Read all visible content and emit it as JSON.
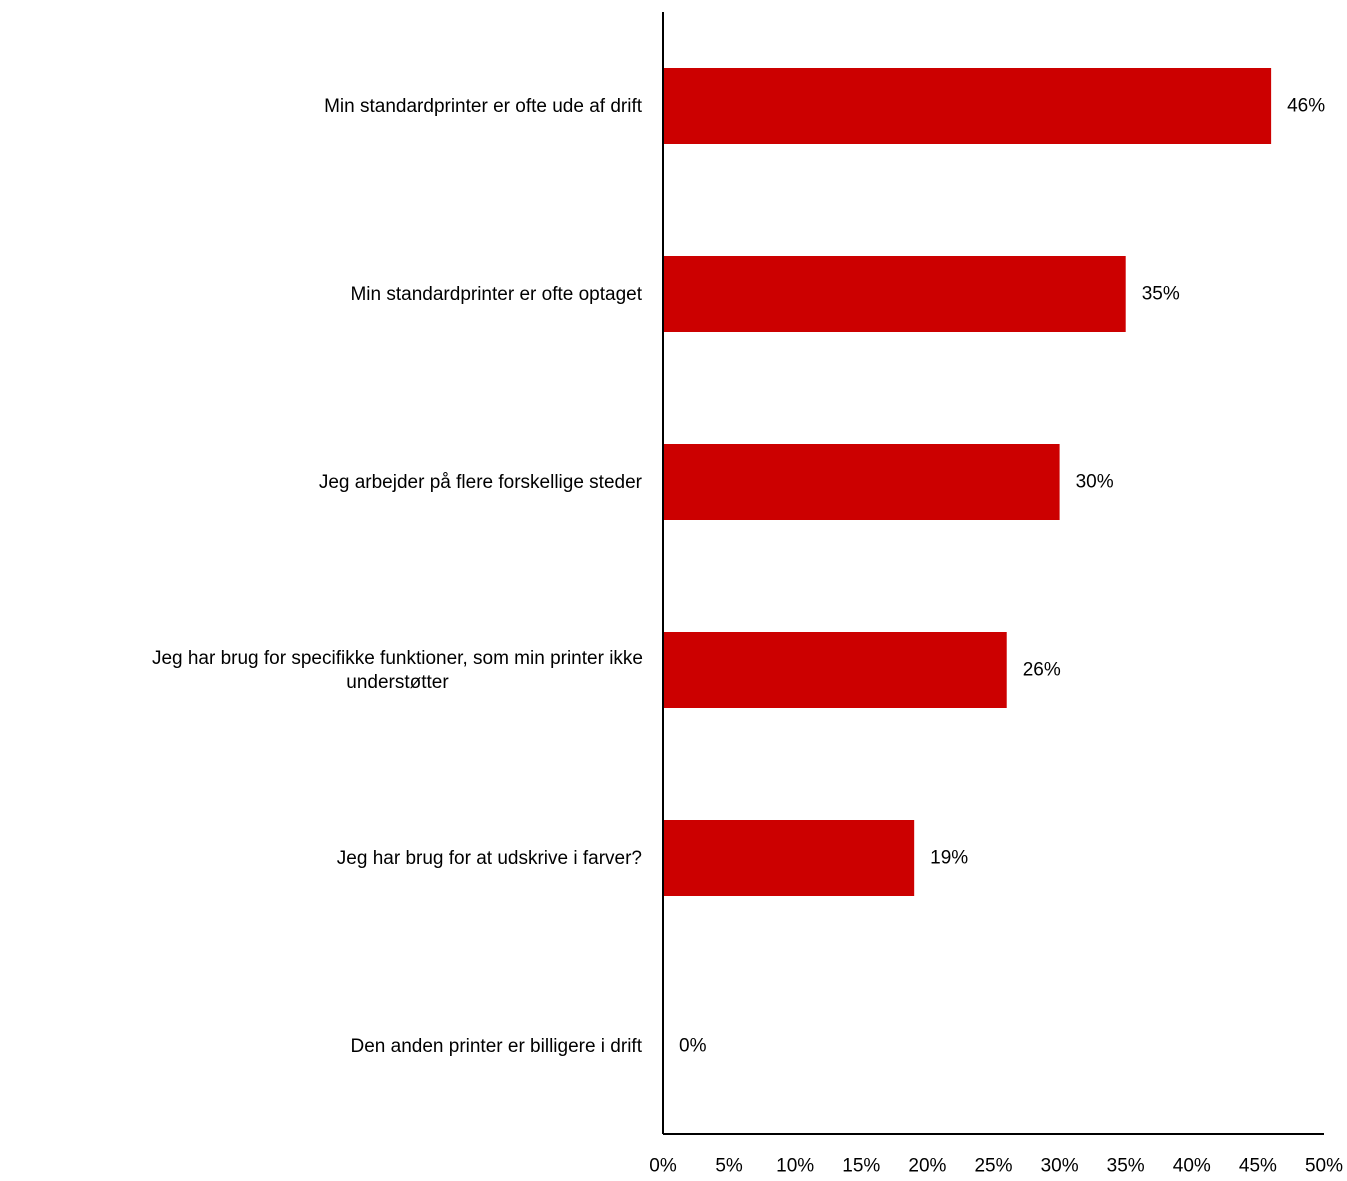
{
  "chart_data": {
    "type": "bar",
    "orientation": "horizontal",
    "categories": [
      [
        "Min standardprinter er ofte ude af drift"
      ],
      [
        "Min standardprinter er ofte optaget"
      ],
      [
        "Jeg arbejder på flere forskellige steder"
      ],
      [
        "Jeg har brug for specifikke funktioner, som min printer ikke",
        "understøtter"
      ],
      [
        "Jeg har brug for at udskrive i farver?"
      ],
      [
        "Den anden printer er billigere i drift"
      ]
    ],
    "values": [
      46,
      35,
      30,
      26,
      19,
      0
    ],
    "data_labels": [
      "46%",
      "35%",
      "30%",
      "26%",
      "19%",
      "0%"
    ],
    "xlim": [
      0,
      50
    ],
    "xticks": [
      0,
      5,
      10,
      15,
      20,
      25,
      30,
      35,
      40,
      45,
      50
    ],
    "xtick_labels": [
      "0%",
      "5%",
      "10%",
      "15%",
      "20%",
      "25%",
      "30%",
      "35%",
      "40%",
      "45%",
      "50%"
    ],
    "title": "",
    "xlabel": "",
    "ylabel": "",
    "grid": false,
    "legend": "none",
    "colors": {
      "bar": "#cc0000",
      "axis": "#000000",
      "text": "#000000"
    }
  }
}
